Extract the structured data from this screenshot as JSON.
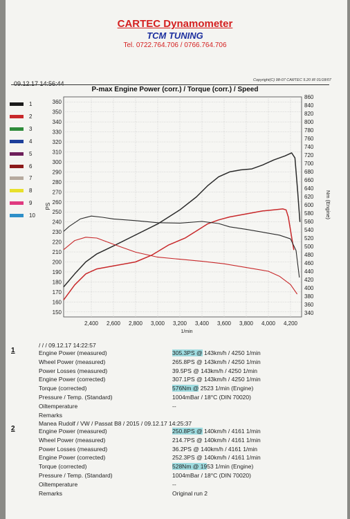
{
  "header": {
    "company": "CARTEC Dynamometer",
    "tuner": "TCM TUNING",
    "phone": "Tel. 0722.764.706 / 0766.764.706"
  },
  "printout": {
    "timestamp": "09.12.17 14:56:44",
    "copyright": "Copyright(C) 98-07 CARTEC 5.20 IR 01/18/07"
  },
  "legend": [
    {
      "num": "1",
      "color": "#1a1a1a"
    },
    {
      "num": "2",
      "color": "#c8282a"
    },
    {
      "num": "3",
      "color": "#2e8b3a"
    },
    {
      "num": "4",
      "color": "#1d3f9a"
    },
    {
      "num": "5",
      "color": "#6d1f5a"
    },
    {
      "num": "6",
      "color": "#8c1a1a"
    },
    {
      "num": "7",
      "color": "#b6aa9e"
    },
    {
      "num": "8",
      "color": "#e8e02a"
    },
    {
      "num": "9",
      "color": "#e03a80"
    },
    {
      "num": "10",
      "color": "#2e8fc8"
    }
  ],
  "chart_data": {
    "type": "line",
    "title": "P-max Engine Power (corr.) / Torque (corr.) / Speed",
    "xlabel": "1/min",
    "ylabel_left": "PS",
    "ylabel_right": "Nm (Engine)",
    "xlim": [
      2150,
      4300
    ],
    "xticks": [
      2400,
      2600,
      2800,
      3000,
      3200,
      3400,
      3600,
      3800,
      4000,
      4200
    ],
    "ylim_left": [
      145,
      365
    ],
    "yticks_left": [
      150,
      160,
      170,
      180,
      190,
      200,
      210,
      220,
      230,
      240,
      250,
      260,
      270,
      280,
      290,
      300,
      310,
      320,
      330,
      340,
      350,
      360
    ],
    "ylim_right": [
      330,
      860
    ],
    "yticks_right": [
      340,
      360,
      380,
      400,
      420,
      440,
      460,
      480,
      500,
      520,
      540,
      560,
      580,
      600,
      620,
      640,
      660,
      680,
      700,
      720,
      740,
      760,
      780,
      800,
      820,
      840,
      860
    ],
    "grid": true,
    "series": [
      {
        "axis": "left",
        "color": "#2a2a2a",
        "points": [
          [
            2150,
            175
          ],
          [
            2250,
            188
          ],
          [
            2350,
            200
          ],
          [
            2450,
            208
          ],
          [
            2600,
            216
          ],
          [
            2800,
            227
          ],
          [
            3000,
            238
          ],
          [
            3200,
            252
          ],
          [
            3350,
            265
          ],
          [
            3450,
            276
          ],
          [
            3550,
            285
          ],
          [
            3650,
            290
          ],
          [
            3750,
            292
          ],
          [
            3850,
            293
          ],
          [
            3950,
            297
          ],
          [
            4050,
            302
          ],
          [
            4150,
            306
          ],
          [
            4210,
            309
          ],
          [
            4240,
            304
          ],
          [
            4265,
            270
          ],
          [
            4285,
            240
          ]
        ]
      },
      {
        "axis": "left",
        "color": "#c8282a",
        "points": [
          [
            2150,
            162
          ],
          [
            2250,
            177
          ],
          [
            2350,
            188
          ],
          [
            2450,
            193
          ],
          [
            2600,
            196
          ],
          [
            2800,
            200
          ],
          [
            2950,
            207
          ],
          [
            3100,
            217
          ],
          [
            3250,
            224
          ],
          [
            3350,
            231
          ],
          [
            3450,
            238
          ],
          [
            3550,
            242
          ],
          [
            3650,
            245
          ],
          [
            3800,
            248
          ],
          [
            3950,
            251
          ],
          [
            4050,
            252
          ],
          [
            4130,
            253
          ],
          [
            4160,
            252
          ],
          [
            4180,
            245
          ],
          [
            4210,
            225
          ],
          [
            4230,
            212
          ]
        ]
      },
      {
        "axis": "right",
        "color": "#2a2a2a",
        "points": [
          [
            2150,
            536
          ],
          [
            2200,
            548
          ],
          [
            2300,
            566
          ],
          [
            2400,
            573
          ],
          [
            2500,
            570
          ],
          [
            2600,
            566
          ],
          [
            2800,
            562
          ],
          [
            3000,
            557
          ],
          [
            3200,
            556
          ],
          [
            3400,
            560
          ],
          [
            3550,
            555
          ],
          [
            3650,
            547
          ],
          [
            3800,
            541
          ],
          [
            3950,
            534
          ],
          [
            4100,
            527
          ],
          [
            4200,
            518
          ],
          [
            4250,
            490
          ],
          [
            4280,
            425
          ]
        ]
      },
      {
        "axis": "right",
        "color": "#c8282a",
        "points": [
          [
            2150,
            492
          ],
          [
            2250,
            514
          ],
          [
            2350,
            522
          ],
          [
            2450,
            520
          ],
          [
            2600,
            505
          ],
          [
            2800,
            486
          ],
          [
            3000,
            474
          ],
          [
            3200,
            469
          ],
          [
            3400,
            464
          ],
          [
            3600,
            458
          ],
          [
            3800,
            449
          ],
          [
            4000,
            440
          ],
          [
            4100,
            428
          ],
          [
            4150,
            418
          ],
          [
            4200,
            408
          ],
          [
            4260,
            385
          ]
        ]
      }
    ]
  },
  "runs": [
    {
      "num": "1",
      "header": "/ / / 09.12.17 14:22:57",
      "rows": [
        {
          "label": "Engine Power (measured)",
          "value": "305.3PS @ 143km/h / 4250 1/min",
          "hl": "305.3PS @"
        },
        {
          "label": "Wheel Power (measured)",
          "value": "265.8PS @ 143km/h / 4250 1/min",
          "hl": ""
        },
        {
          "label": "Power Losses (measured)",
          "value": "39.5PS @ 143km/h / 4250 1/min",
          "hl": ""
        },
        {
          "label": "Engine Power (corrected)",
          "value": "307.1PS @ 143km/h / 4250 1/min",
          "hl": ""
        },
        {
          "label": "Torque (corrected)",
          "value": "576Nm @ 2523 1/min (Engine)",
          "hl": "576Nm @"
        },
        {
          "label": "Pressure / Temp. (Standard)",
          "value": "1004mBar / 18°C    (DIN 70020)",
          "hl": ""
        },
        {
          "label": "Oiltemperature",
          "value": "--",
          "hl": ""
        },
        {
          "label": "Remarks",
          "value": "",
          "hl": ""
        }
      ]
    },
    {
      "num": "2",
      "header": "Manea Rudolf / VW / Passat B8 / 2015 / 09.12.17 14:25:37",
      "rows": [
        {
          "label": "Engine Power (measured)",
          "value": "250.8PS @ 140km/h / 4161 1/min",
          "hl": "250.8PS @"
        },
        {
          "label": "Wheel Power (measured)",
          "value": "214.7PS @ 140km/h / 4161 1/min",
          "hl": ""
        },
        {
          "label": "Power Losses (measured)",
          "value": "36.2PS @ 140km/h / 4161 1/min",
          "hl": ""
        },
        {
          "label": "Engine Power (corrected)",
          "value": "252.3PS @ 140km/h / 4161 1/min",
          "hl": ""
        },
        {
          "label": "Torque (corrected)",
          "value": "528Nm @ 1953 1/min (Engine)",
          "hl": "528Nm @ 19"
        },
        {
          "label": "Pressure / Temp. (Standard)",
          "value": "1004mBar / 18°C    (DIN 70020)",
          "hl": ""
        },
        {
          "label": "Oiltemperature",
          "value": "--",
          "hl": ""
        },
        {
          "label": "Remarks",
          "value": "Original run 2",
          "hl": ""
        }
      ]
    }
  ]
}
